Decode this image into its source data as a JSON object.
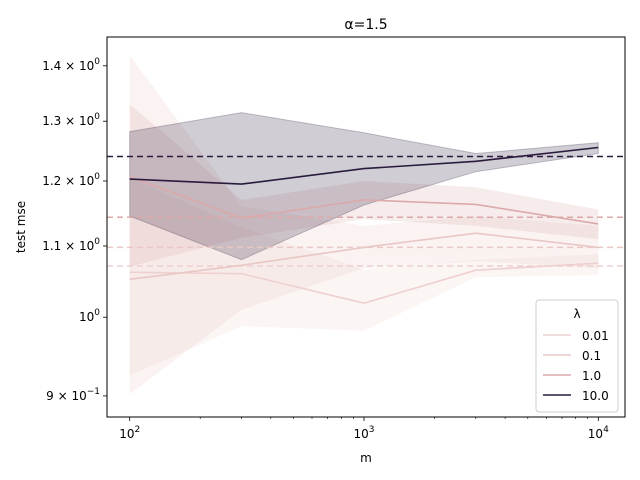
{
  "chart_data": {
    "type": "line",
    "title": "α=1.5",
    "xlabel": "m",
    "ylabel": "test mse",
    "xscale": "log",
    "yscale": "log",
    "xlim": [
      80,
      13000
    ],
    "ylim": [
      0.875,
      1.455
    ],
    "x": [
      100,
      300,
      1000,
      3000,
      10000
    ],
    "xticks": [
      {
        "value": 100,
        "base": "10",
        "exp": "2"
      },
      {
        "value": 1000,
        "base": "10",
        "exp": "3"
      },
      {
        "value": 10000,
        "base": "10",
        "exp": "4"
      }
    ],
    "yticks": [
      {
        "value": 0.9,
        "mant": "9 × 10",
        "exp": "−1"
      },
      {
        "value": 1.0,
        "mant": "10",
        "exp": "0"
      },
      {
        "value": 1.1,
        "mant": "1.1 × 10",
        "exp": "0"
      },
      {
        "value": 1.2,
        "mant": "1.2 × 10",
        "exp": "0"
      },
      {
        "value": 1.3,
        "mant": "1.3 × 10",
        "exp": "0"
      },
      {
        "value": 1.4,
        "mant": "1.4 × 10",
        "exp": "0"
      }
    ],
    "legend": {
      "title": "λ",
      "position": "lower right"
    },
    "series": [
      {
        "name": "0.01",
        "color": "#eed0cf",
        "values": [
          1.062,
          1.06,
          1.019,
          1.065,
          1.075
        ],
        "lower": [
          0.925,
          0.988,
          0.982,
          1.055,
          1.058
        ],
        "upper": [
          1.205,
          1.128,
          1.066,
          1.08,
          1.088
        ],
        "reference": 1.071
      },
      {
        "name": "0.1",
        "color": "#e8c7c5",
        "values": [
          1.052,
          1.072,
          1.098,
          1.119,
          1.098
        ],
        "lower": [
          0.902,
          1.01,
          1.068,
          1.078,
          1.068
        ],
        "upper": [
          1.42,
          1.16,
          1.13,
          1.145,
          1.13
        ],
        "reference": 1.098
      },
      {
        "name": "1.0",
        "color": "#dba9aa",
        "values": [
          1.207,
          1.142,
          1.17,
          1.163,
          1.133
        ],
        "lower": [
          1.07,
          1.112,
          1.14,
          1.13,
          1.11
        ],
        "upper": [
          1.33,
          1.17,
          1.2,
          1.19,
          1.155
        ],
        "reference": 1.143
      },
      {
        "name": "10.0",
        "color": "#2a1b3d",
        "values": [
          1.203,
          1.195,
          1.22,
          1.232,
          1.255
        ],
        "lower": [
          1.145,
          1.08,
          1.162,
          1.215,
          1.245
        ],
        "upper": [
          1.282,
          1.315,
          1.28,
          1.245,
          1.263
        ],
        "reference": 1.24
      }
    ]
  }
}
